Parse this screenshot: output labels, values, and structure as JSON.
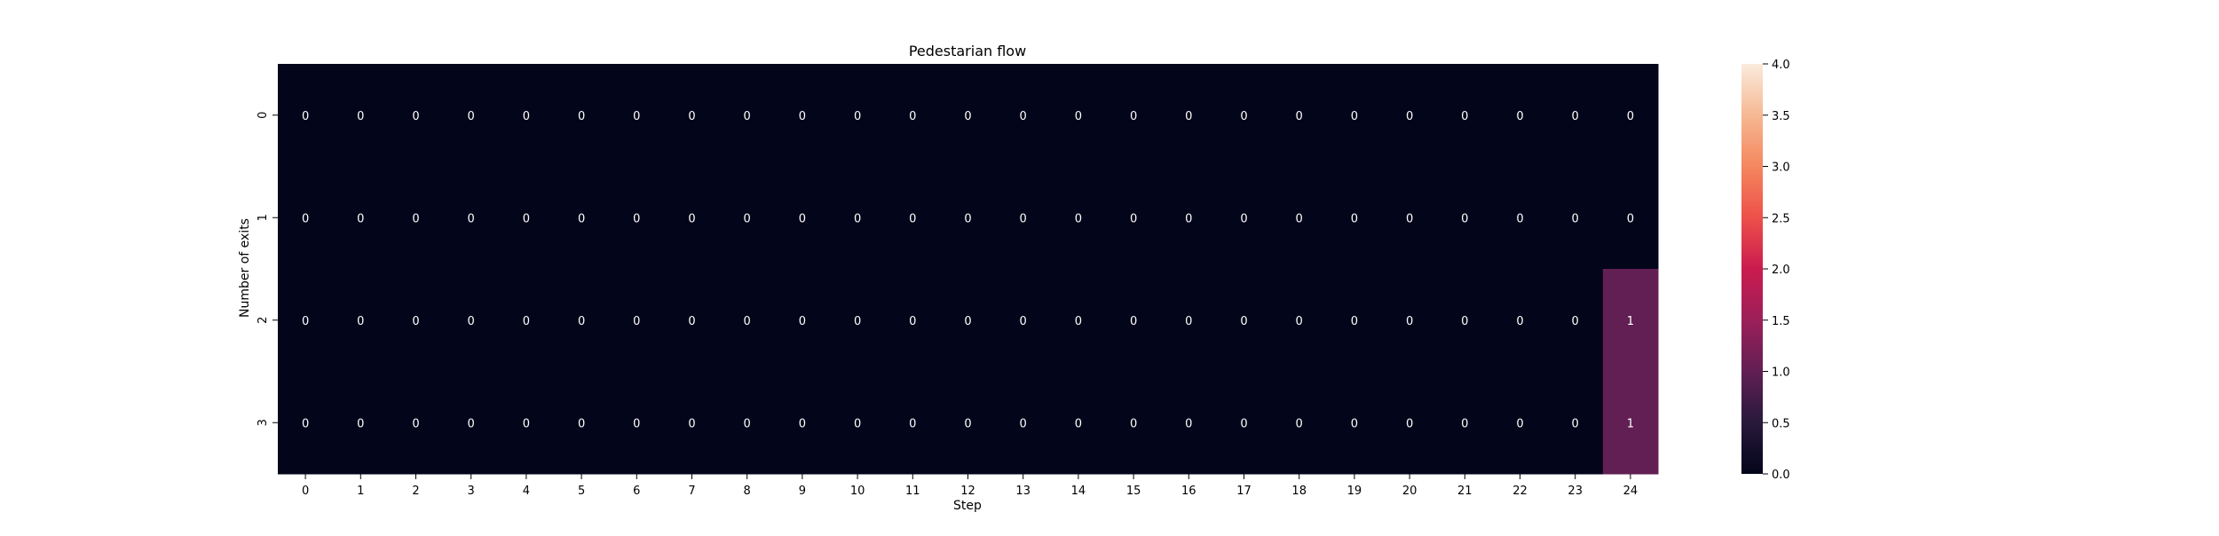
{
  "chart_data": {
    "type": "heatmap",
    "title": "Pedestarian flow",
    "xlabel": "Step",
    "ylabel": "Number of exits",
    "x": [
      "0",
      "1",
      "2",
      "3",
      "4",
      "5",
      "6",
      "7",
      "8",
      "9",
      "10",
      "11",
      "12",
      "13",
      "14",
      "15",
      "16",
      "17",
      "18",
      "19",
      "20",
      "21",
      "22",
      "23",
      "24"
    ],
    "y": [
      "0",
      "1",
      "2",
      "3"
    ],
    "values": [
      [
        0,
        0,
        0,
        0,
        0,
        0,
        0,
        0,
        0,
        0,
        0,
        0,
        0,
        0,
        0,
        0,
        0,
        0,
        0,
        0,
        0,
        0,
        0,
        0,
        0
      ],
      [
        0,
        0,
        0,
        0,
        0,
        0,
        0,
        0,
        0,
        0,
        0,
        0,
        0,
        0,
        0,
        0,
        0,
        0,
        0,
        0,
        0,
        0,
        0,
        0,
        0
      ],
      [
        0,
        0,
        0,
        0,
        0,
        0,
        0,
        0,
        0,
        0,
        0,
        0,
        0,
        0,
        0,
        0,
        0,
        0,
        0,
        0,
        0,
        0,
        0,
        0,
        1
      ],
      [
        0,
        0,
        0,
        0,
        0,
        0,
        0,
        0,
        0,
        0,
        0,
        0,
        0,
        0,
        0,
        0,
        0,
        0,
        0,
        0,
        0,
        0,
        0,
        0,
        1
      ]
    ],
    "annotations": true,
    "colorbar": {
      "min": 0,
      "max": 4,
      "ticks": [
        "0.0",
        "0.5",
        "1.0",
        "1.5",
        "2.0",
        "2.5",
        "3.0",
        "3.5",
        "4.0"
      ],
      "colormap": "rocket"
    },
    "colors": {
      "cell_zero": "#03051a",
      "cell_one": "#611f53",
      "annotation_text": "#ffffff",
      "axis_text": "#262626"
    }
  }
}
